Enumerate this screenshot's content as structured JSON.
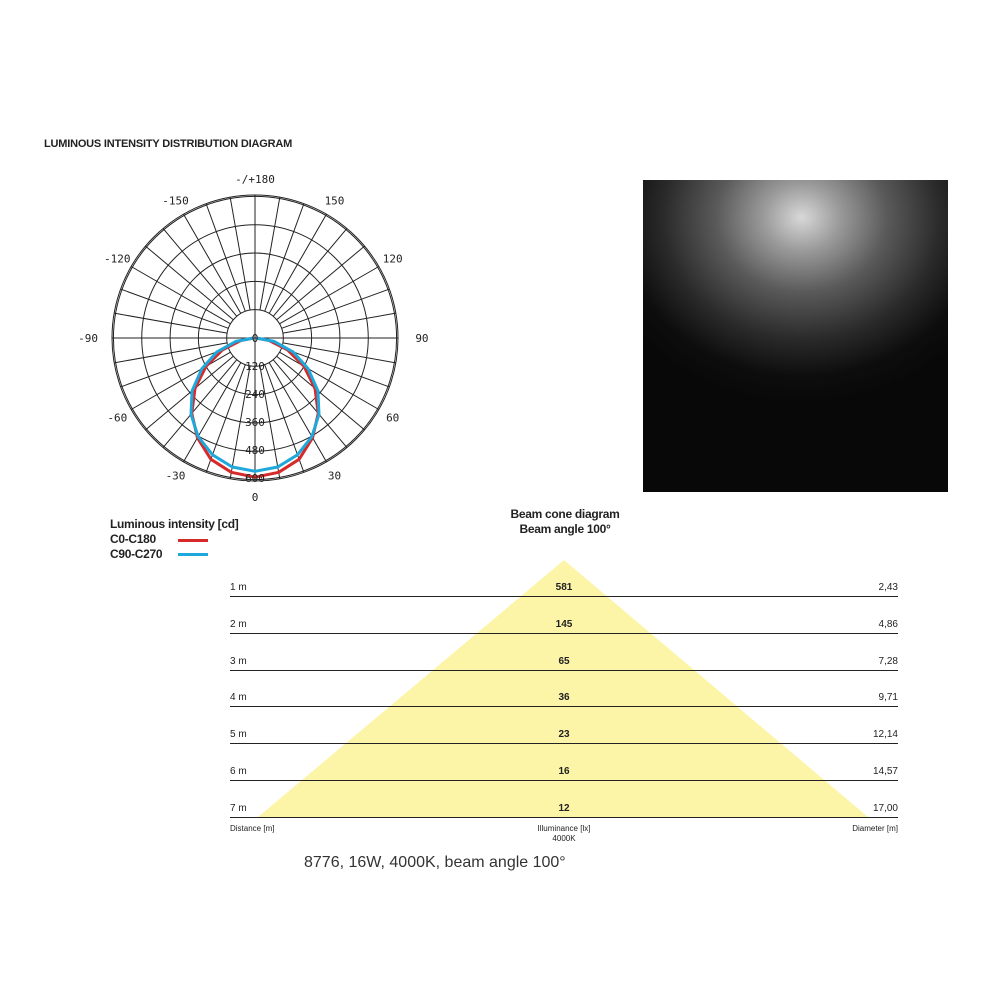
{
  "title": "LUMINOUS INTENSITY DISTRIBUTION DIAGRAM",
  "chart_data": {
    "type": "polar",
    "angle_labels": [
      "-/+180",
      "-150",
      "150",
      "-120",
      "120",
      "-90",
      "90",
      "-60",
      "60",
      "-30",
      "30",
      "0"
    ],
    "radial_ticks": [
      "0",
      "120",
      "240",
      "360",
      "480",
      "600"
    ],
    "rmax": 600,
    "angles": [
      0,
      10,
      20,
      30,
      40,
      50,
      60,
      70,
      80,
      90
    ],
    "series": [
      {
        "name": "C0-C180",
        "color": "#d62a2a",
        "values": [
          590,
          578,
          547,
          488,
          417,
          332,
          240,
          147,
          61,
          5
        ]
      },
      {
        "name": "C90-C270",
        "color": "#1ea8dc",
        "values": [
          565,
          555,
          527,
          482,
          422,
          348,
          260,
          172,
          82,
          5
        ]
      }
    ]
  },
  "legend": {
    "title": "Luminous intensity [cd]",
    "items": [
      "C0-C180",
      "C90-C270"
    ]
  },
  "cone": {
    "title": "Beam cone diagram",
    "subtitle": "Beam angle 100°",
    "color": "#fcf5a8",
    "rows": [
      {
        "distance": "1 m",
        "lux": "581",
        "diameter": "2,43"
      },
      {
        "distance": "2 m",
        "lux": "145",
        "diameter": "4,86"
      },
      {
        "distance": "3 m",
        "lux": "65",
        "diameter": "7,28"
      },
      {
        "distance": "4 m",
        "lux": "36",
        "diameter": "9,71"
      },
      {
        "distance": "5 m",
        "lux": "23",
        "diameter": "12,14"
      },
      {
        "distance": "6 m",
        "lux": "16",
        "diameter": "14,57"
      },
      {
        "distance": "7 m",
        "lux": "12",
        "diameter": "17,00"
      }
    ],
    "footer": {
      "distance": "Distance [m]",
      "illuminance": "Illuminance [lx]",
      "cct": "4000K",
      "diameter": "Diameter [m]"
    }
  },
  "caption": "8776, 16W, 4000K, beam angle 100°"
}
